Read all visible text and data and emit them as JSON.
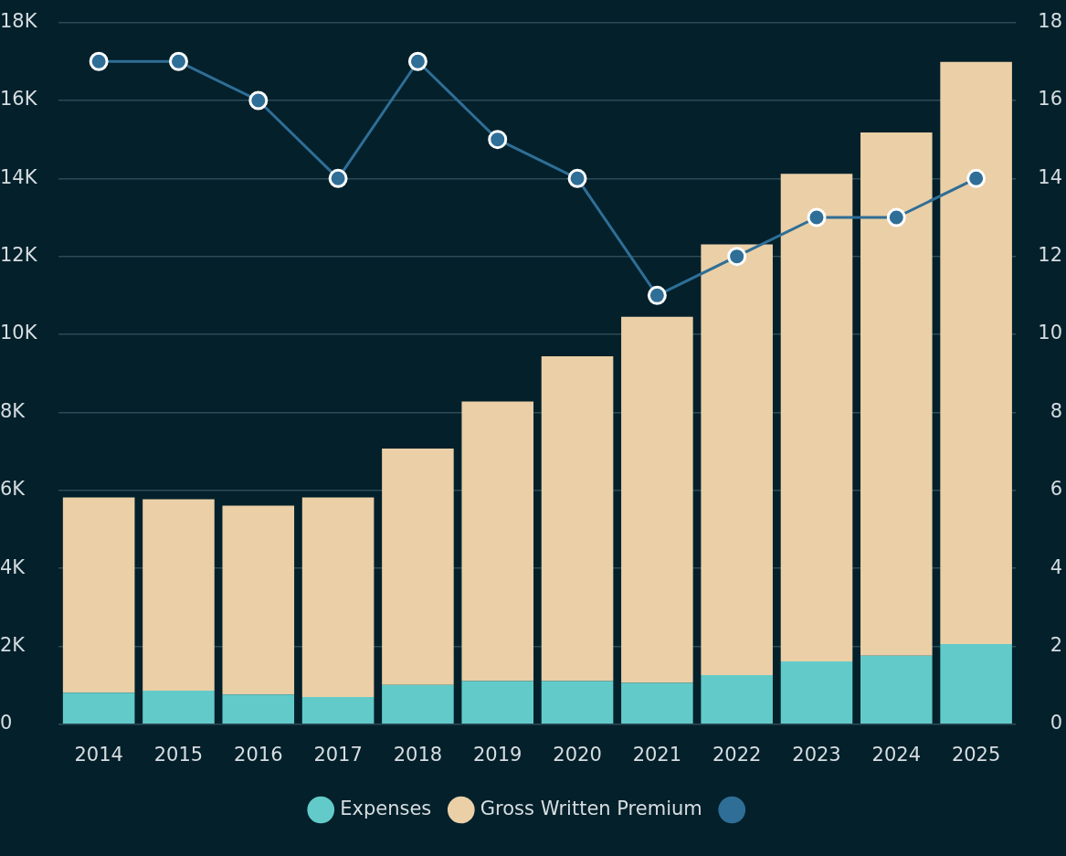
{
  "chart_data": {
    "type": "bar",
    "stacked": true,
    "categories": [
      "2014",
      "2015",
      "2016",
      "2017",
      "2018",
      "2019",
      "2020",
      "2021",
      "2022",
      "2023",
      "2024",
      "2025"
    ],
    "series": [
      {
        "name": "Expenses",
        "color": "#62cbc9",
        "values": [
          810,
          860,
          760,
          700,
          1010,
          1110,
          1110,
          1060,
          1260,
          1610,
          1760,
          2060
        ]
      },
      {
        "name": "Gross Written Premium",
        "color": "#eacfa7",
        "values": [
          5010,
          4910,
          4850,
          5120,
          6060,
          7170,
          8330,
          9390,
          11050,
          12510,
          13420,
          14930
        ]
      },
      {
        "type": "line",
        "axis": "y2",
        "color": "#2f6e96",
        "values": [
          17,
          17,
          16,
          14,
          17,
          15,
          14,
          11,
          12,
          13,
          13,
          14
        ]
      }
    ],
    "ylim": [
      0,
      18000
    ],
    "yticks": [
      0,
      {
        "value": 2000,
        "label": "2K"
      },
      {
        "value": 4000,
        "label": "4K"
      },
      {
        "value": 6000,
        "label": "6K"
      },
      {
        "value": 8000,
        "label": "8K"
      },
      {
        "value": 10000,
        "label": "10K"
      },
      {
        "value": 12000,
        "label": "12K"
      },
      {
        "value": 14000,
        "label": "14K"
      },
      {
        "value": 16000,
        "label": "16K"
      },
      {
        "value": 18000,
        "label": "18K"
      }
    ],
    "y2lim": [
      0,
      18
    ],
    "y2ticks": [
      0,
      2,
      4,
      6,
      8,
      10,
      12,
      14,
      16,
      18
    ],
    "grid": "y",
    "legend": "bottom",
    "marker": "circle",
    "line_style": "solid"
  }
}
